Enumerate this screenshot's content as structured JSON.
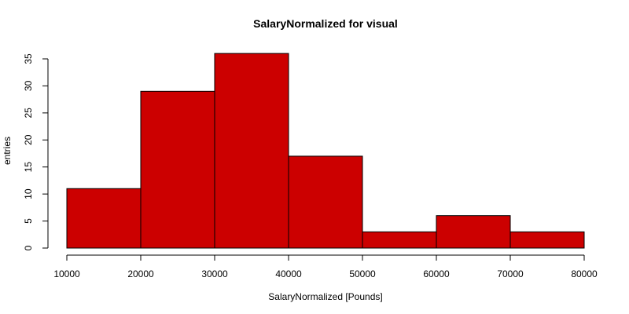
{
  "chart_data": {
    "type": "bar",
    "title": "SalaryNormalized for visual",
    "xlabel": "SalaryNormalized [Pounds]",
    "ylabel": "entries",
    "bins": [
      {
        "x0": 10000,
        "x1": 20000,
        "count": 11
      },
      {
        "x0": 20000,
        "x1": 30000,
        "count": 29
      },
      {
        "x0": 30000,
        "x1": 40000,
        "count": 36
      },
      {
        "x0": 40000,
        "x1": 50000,
        "count": 17
      },
      {
        "x0": 50000,
        "x1": 60000,
        "count": 3
      },
      {
        "x0": 60000,
        "x1": 70000,
        "count": 6
      },
      {
        "x0": 70000,
        "x1": 80000,
        "count": 3
      }
    ],
    "xlim": [
      10000,
      80000
    ],
    "ylim": [
      0,
      35
    ],
    "xticks": [
      "10000",
      "20000",
      "30000",
      "40000",
      "50000",
      "60000",
      "70000",
      "80000"
    ],
    "yticks": [
      "0",
      "5",
      "10",
      "15",
      "20",
      "25",
      "30",
      "35"
    ],
    "grid": false,
    "bar_color": "#cc0000",
    "bar_border_color": "#000000"
  }
}
